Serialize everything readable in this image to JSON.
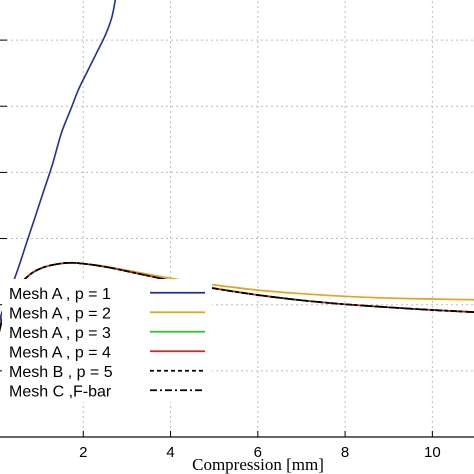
{
  "chart_data": {
    "type": "line",
    "title": "",
    "xlabel": "Compression [mm]",
    "ylabel": "",
    "xlim": [
      0,
      11
    ],
    "ylim": [
      0,
      1
    ],
    "x_ticks": [
      2,
      4,
      6,
      8,
      10
    ],
    "x_tick_labels": [
      "2",
      "4",
      "6",
      "8",
      "10"
    ],
    "y_ticks": [
      0.15,
      0.3,
      0.45,
      0.6,
      0.75,
      0.9
    ],
    "grid": true,
    "legend_position": "bottom-left",
    "series": [
      {
        "name": "Mesh A , p = 1",
        "color": "#1f2fa8",
        "dash": "solid",
        "x": [
          0.02,
          0.1,
          0.2,
          0.35,
          0.5,
          0.7,
          0.9,
          1.1,
          1.3,
          1.5,
          1.7,
          1.9,
          2.1,
          2.3,
          2.5,
          2.65,
          2.75
        ],
        "y": [
          0.22,
          0.27,
          0.3,
          0.34,
          0.38,
          0.44,
          0.5,
          0.56,
          0.62,
          0.69,
          0.74,
          0.79,
          0.83,
          0.87,
          0.91,
          0.95,
          1.0
        ]
      },
      {
        "name": "Mesh A , p = 2",
        "color": "#e8a317",
        "dash": "solid",
        "x": [
          0.0,
          0.1,
          0.25,
          0.5,
          0.8,
          1.1,
          1.4,
          1.7,
          2.0,
          2.5,
          3.0,
          4.0,
          5.0,
          6.0,
          7.0,
          8.0,
          9.0,
          10.0,
          11.0
        ],
        "y": [
          0.2,
          0.25,
          0.3,
          0.34,
          0.37,
          0.385,
          0.392,
          0.395,
          0.393,
          0.387,
          0.378,
          0.36,
          0.345,
          0.333,
          0.325,
          0.319,
          0.315,
          0.313,
          0.311
        ]
      },
      {
        "name": "Mesh A , p = 3",
        "color": "#22cc22",
        "dash": "solid",
        "x": [
          0.0,
          0.1,
          0.25,
          0.5,
          0.8,
          1.1,
          1.4,
          1.7,
          2.0,
          2.5,
          3.0,
          4.0,
          5.0,
          6.0,
          7.0,
          8.0,
          9.0,
          10.0,
          11.0
        ],
        "y": [
          0.2,
          0.25,
          0.3,
          0.34,
          0.37,
          0.385,
          0.392,
          0.395,
          0.393,
          0.386,
          0.376,
          0.355,
          0.337,
          0.322,
          0.31,
          0.301,
          0.294,
          0.288,
          0.283
        ]
      },
      {
        "name": "Mesh A , p = 4",
        "color": "#dd2222",
        "dash": "solid",
        "x": [
          0.0,
          0.1,
          0.25,
          0.5,
          0.8,
          1.1,
          1.4,
          1.7,
          2.0,
          2.5,
          3.0,
          4.0,
          5.0,
          6.0,
          7.0,
          8.0,
          9.0,
          10.0,
          11.0
        ],
        "y": [
          0.2,
          0.25,
          0.3,
          0.34,
          0.37,
          0.385,
          0.392,
          0.395,
          0.393,
          0.386,
          0.376,
          0.355,
          0.337,
          0.322,
          0.31,
          0.301,
          0.294,
          0.288,
          0.283
        ]
      },
      {
        "name": "Mesh B , p = 5",
        "color": "#000000",
        "dash": "dashed",
        "x": [
          0.0,
          0.1,
          0.25,
          0.5,
          0.8,
          1.1,
          1.4,
          1.7,
          2.0,
          2.5,
          3.0,
          4.0,
          5.0,
          6.0,
          7.0,
          8.0,
          9.0,
          10.0,
          11.0
        ],
        "y": [
          0.2,
          0.25,
          0.3,
          0.34,
          0.37,
          0.385,
          0.392,
          0.395,
          0.393,
          0.386,
          0.376,
          0.355,
          0.337,
          0.322,
          0.31,
          0.301,
          0.294,
          0.288,
          0.283
        ]
      },
      {
        "name": "Mesh C ,F-bar",
        "color": "#000000",
        "dash": "dashdot",
        "x": [
          0.0,
          0.1,
          0.25,
          0.5,
          0.8,
          1.1,
          1.4,
          1.7,
          2.0,
          2.5,
          3.0,
          4.0,
          5.0,
          6.0,
          7.0,
          8.0,
          9.0,
          10.0,
          11.0
        ],
        "y": [
          0.2,
          0.25,
          0.3,
          0.34,
          0.37,
          0.385,
          0.392,
          0.395,
          0.393,
          0.386,
          0.376,
          0.355,
          0.337,
          0.322,
          0.31,
          0.301,
          0.294,
          0.288,
          0.283
        ]
      }
    ]
  }
}
